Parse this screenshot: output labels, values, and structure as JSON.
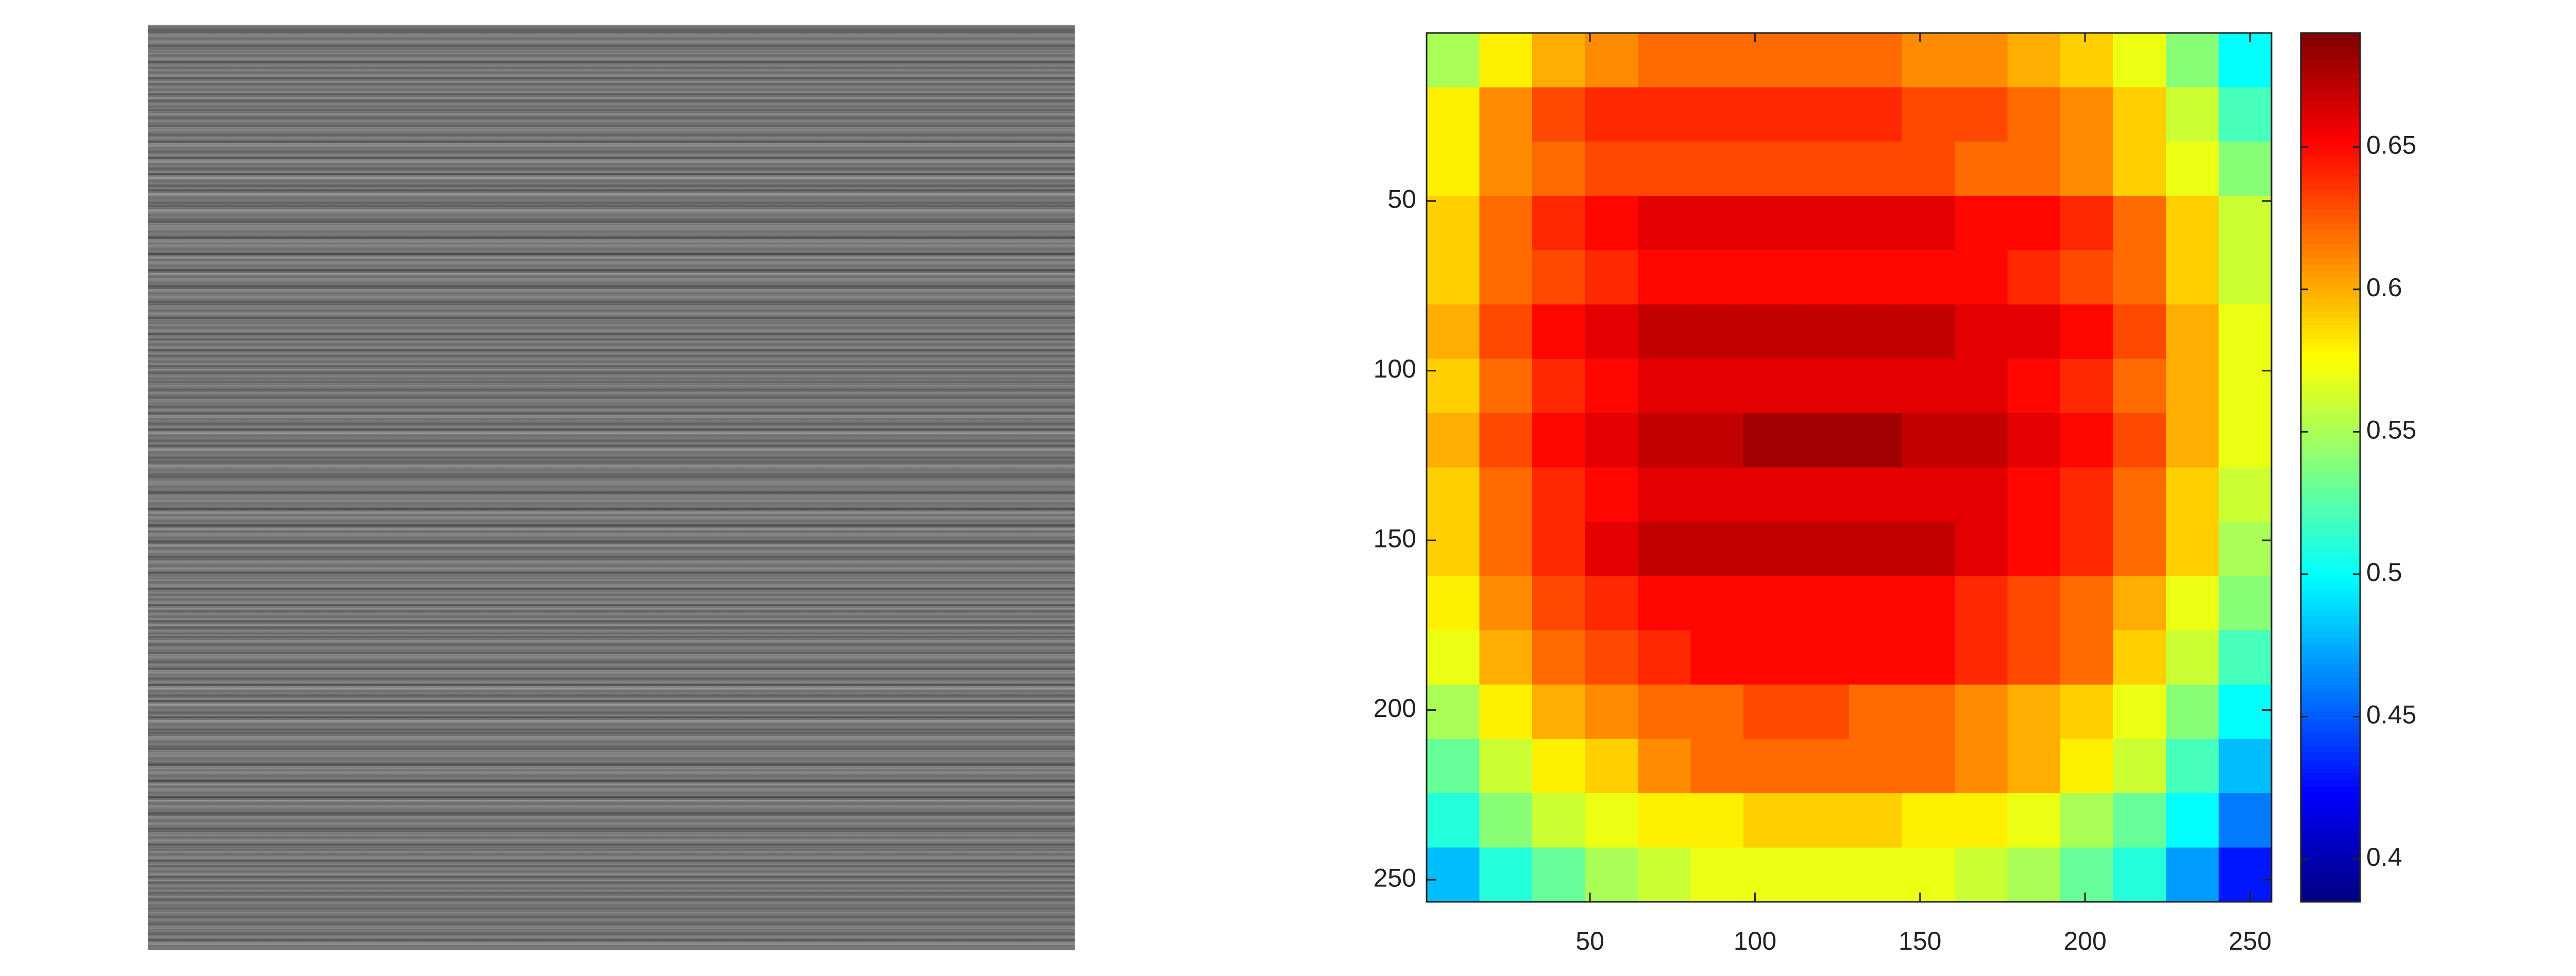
{
  "chart_data": {
    "type": "heatmap",
    "xlim": [
      0.5,
      256.5
    ],
    "ylim": [
      0.5,
      256.5
    ],
    "y_reversed": true,
    "xticks": [
      50,
      100,
      150,
      200,
      250
    ],
    "yticks": [
      50,
      100,
      150,
      200,
      250
    ],
    "colormap": "jet",
    "clim": [
      0.385,
      0.69
    ],
    "colorbar_ticks": [
      0.4,
      0.45,
      0.5,
      0.55,
      0.6,
      0.65
    ],
    "z": [
      [
        0.55,
        0.58,
        0.6,
        0.61,
        0.62,
        0.62,
        0.62,
        0.62,
        0.62,
        0.61,
        0.61,
        0.6,
        0.59,
        0.57,
        0.54,
        0.5
      ],
      [
        0.58,
        0.61,
        0.63,
        0.64,
        0.64,
        0.64,
        0.64,
        0.64,
        0.64,
        0.63,
        0.63,
        0.62,
        0.61,
        0.59,
        0.56,
        0.52
      ],
      [
        0.58,
        0.61,
        0.62,
        0.63,
        0.63,
        0.63,
        0.63,
        0.63,
        0.63,
        0.63,
        0.62,
        0.62,
        0.61,
        0.59,
        0.57,
        0.54
      ],
      [
        0.59,
        0.62,
        0.64,
        0.65,
        0.66,
        0.66,
        0.66,
        0.66,
        0.66,
        0.66,
        0.65,
        0.65,
        0.64,
        0.62,
        0.59,
        0.56
      ],
      [
        0.59,
        0.62,
        0.63,
        0.64,
        0.65,
        0.65,
        0.65,
        0.65,
        0.65,
        0.65,
        0.65,
        0.64,
        0.63,
        0.62,
        0.59,
        0.56
      ],
      [
        0.6,
        0.63,
        0.65,
        0.66,
        0.67,
        0.67,
        0.67,
        0.67,
        0.67,
        0.67,
        0.66,
        0.66,
        0.65,
        0.63,
        0.6,
        0.57
      ],
      [
        0.59,
        0.62,
        0.64,
        0.65,
        0.66,
        0.66,
        0.66,
        0.66,
        0.66,
        0.66,
        0.66,
        0.65,
        0.64,
        0.62,
        0.6,
        0.57
      ],
      [
        0.6,
        0.63,
        0.65,
        0.66,
        0.67,
        0.67,
        0.68,
        0.68,
        0.68,
        0.67,
        0.67,
        0.66,
        0.65,
        0.63,
        0.6,
        0.57
      ],
      [
        0.59,
        0.62,
        0.64,
        0.65,
        0.66,
        0.66,
        0.66,
        0.66,
        0.66,
        0.66,
        0.66,
        0.65,
        0.64,
        0.62,
        0.59,
        0.56
      ],
      [
        0.59,
        0.62,
        0.64,
        0.66,
        0.67,
        0.67,
        0.67,
        0.67,
        0.67,
        0.67,
        0.66,
        0.65,
        0.64,
        0.62,
        0.59,
        0.55
      ],
      [
        0.58,
        0.61,
        0.63,
        0.64,
        0.65,
        0.65,
        0.65,
        0.65,
        0.65,
        0.65,
        0.64,
        0.63,
        0.62,
        0.6,
        0.57,
        0.54
      ],
      [
        0.57,
        0.6,
        0.62,
        0.63,
        0.64,
        0.65,
        0.65,
        0.65,
        0.65,
        0.65,
        0.64,
        0.63,
        0.62,
        0.59,
        0.56,
        0.52
      ],
      [
        0.55,
        0.58,
        0.6,
        0.61,
        0.62,
        0.62,
        0.63,
        0.63,
        0.62,
        0.62,
        0.61,
        0.6,
        0.59,
        0.57,
        0.54,
        0.5
      ],
      [
        0.53,
        0.56,
        0.58,
        0.59,
        0.61,
        0.62,
        0.62,
        0.62,
        0.62,
        0.62,
        0.61,
        0.6,
        0.58,
        0.56,
        0.52,
        0.48
      ],
      [
        0.51,
        0.54,
        0.56,
        0.57,
        0.58,
        0.58,
        0.59,
        0.59,
        0.59,
        0.58,
        0.58,
        0.57,
        0.55,
        0.53,
        0.5,
        0.46
      ],
      [
        0.48,
        0.51,
        0.53,
        0.55,
        0.56,
        0.57,
        0.57,
        0.57,
        0.57,
        0.57,
        0.56,
        0.55,
        0.53,
        0.51,
        0.47,
        0.43
      ]
    ]
  }
}
